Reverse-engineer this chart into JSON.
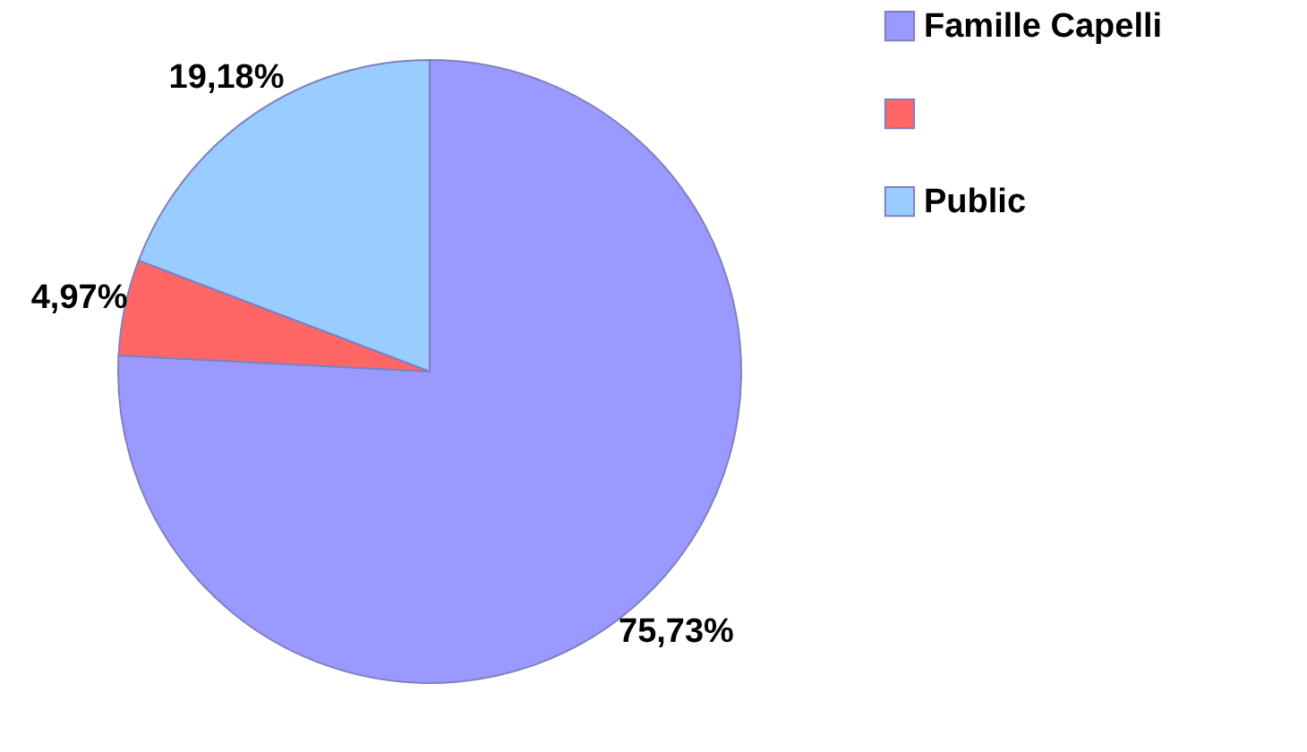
{
  "chart_data": {
    "type": "pie",
    "categories": [
      "Famille Capelli",
      null,
      "Public"
    ],
    "values": [
      75.73,
      4.97,
      19.18
    ],
    "colors": [
      "#9999ff",
      "#ff6666",
      "#99ccff"
    ],
    "value_labels": [
      "75,73%",
      "4,97%",
      "19,18%"
    ],
    "legend": "right"
  }
}
